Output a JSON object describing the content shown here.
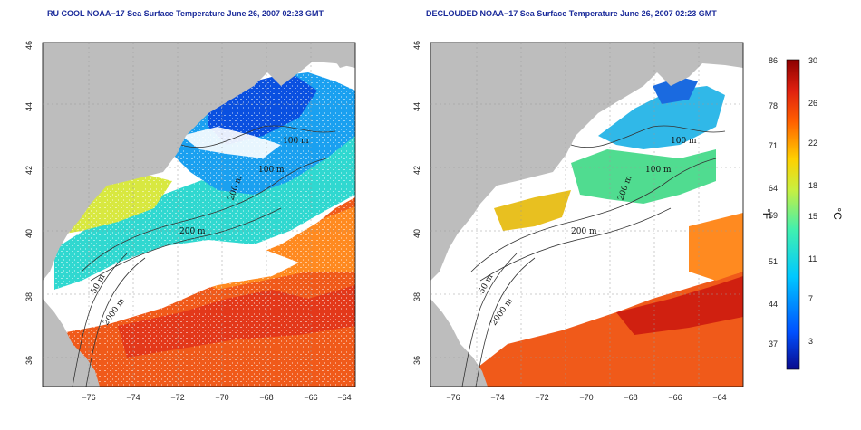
{
  "panels": [
    {
      "title": "RU COOL NOAA−17 Sea Surface Temperature June 26, 2007 02:23 GMT",
      "contour_labels": [
        "100 m",
        "100 m",
        "200 m",
        "200 m",
        "50 m",
        "2000 m"
      ]
    },
    {
      "title": "DECLOUDED NOAA−17 Sea Surface Temperature June 26, 2007 02:23 GMT",
      "contour_labels": [
        "100 m",
        "100 m",
        "200 m",
        "200 m",
        "50 m",
        "2000 m"
      ]
    }
  ],
  "axes": {
    "x_ticks": [
      "−76",
      "−74",
      "−72",
      "−70",
      "−68",
      "−66",
      "−64"
    ],
    "y_ticks": [
      "46",
      "44",
      "42",
      "40",
      "38",
      "36"
    ]
  },
  "colorbar": {
    "fahrenheit_ticks": [
      "86",
      "78",
      "71",
      "64",
      "59",
      "51",
      "44",
      "37"
    ],
    "celsius_ticks": [
      "30",
      "26",
      "22",
      "18",
      "15",
      "11",
      "7",
      "3"
    ],
    "fahrenheit_unit": "°F",
    "celsius_unit": "°C",
    "colors": [
      "#0a0a8c",
      "#0050ff",
      "#00c8ff",
      "#40f0b0",
      "#c8f040",
      "#ffd000",
      "#ff6000",
      "#e02010",
      "#8c0000"
    ]
  },
  "colors": {
    "land": "#bdbdbd",
    "cloud": "#ffffff",
    "title": "#1a2a9a"
  }
}
